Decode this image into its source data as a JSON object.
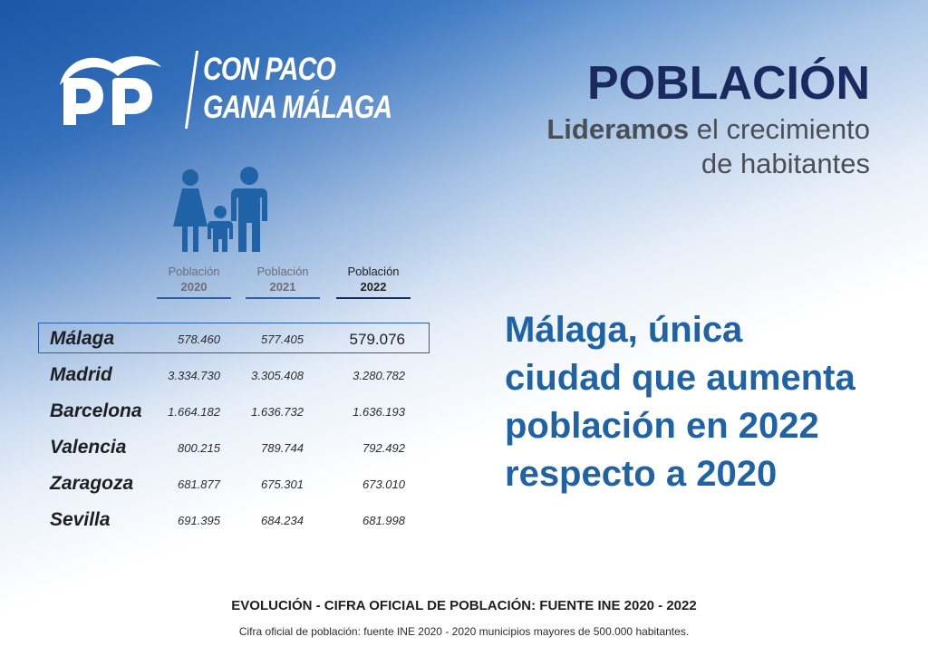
{
  "brand": {
    "logo_text": "PP",
    "slogan_line1": "CON PACO",
    "slogan_line2": "GANA MÁLAGA",
    "logo_color": "#ffffff"
  },
  "header": {
    "title": "POBLACIÓN",
    "subtitle_bold": "Lideramos",
    "subtitle_rest": " el crecimiento",
    "subtitle_line2": "de habitantes"
  },
  "icon": "family-icon",
  "table": {
    "columns": [
      {
        "label": "Población",
        "year": "2020"
      },
      {
        "label": "Población",
        "year": "2021"
      },
      {
        "label": "Población",
        "year": "2022"
      }
    ],
    "rows": [
      {
        "city": "Málaga",
        "v2020": "578.460",
        "v2021": "577.405",
        "v2022": "579.076"
      },
      {
        "city": "Madrid",
        "v2020": "3.334.730",
        "v2021": "3.305.408",
        "v2022": "3.280.782"
      },
      {
        "city": "Barcelona",
        "v2020": "1.664.182",
        "v2021": "1.636.732",
        "v2022": "1.636.193"
      },
      {
        "city": "Valencia",
        "v2020": "800.215",
        "v2021": "789.744",
        "v2022": "792.492"
      },
      {
        "city": "Zaragoza",
        "v2020": "681.877",
        "v2021": "675.301",
        "v2022": "673.010"
      },
      {
        "city": "Sevilla",
        "v2020": "691.395",
        "v2021": "684.234",
        "v2022": "681.998"
      }
    ]
  },
  "statement": {
    "line1": "Málaga, única",
    "line2": "ciudad que aumenta",
    "line3": "población en 2022",
    "line4": "respecto a 2020"
  },
  "footer": {
    "title": "EVOLUCIÓN - CIFRA OFICIAL DE POBLACIÓN: FUENTE INE 2020 - 2022",
    "note": "Cifra oficial de población: fuente INE 2020 - 2020 municipios mayores de 500.000 habitantes."
  },
  "colors": {
    "accent_blue": "#1f62a5",
    "navy": "#1a2a5e",
    "highlight_border": "#2a5ea6"
  }
}
